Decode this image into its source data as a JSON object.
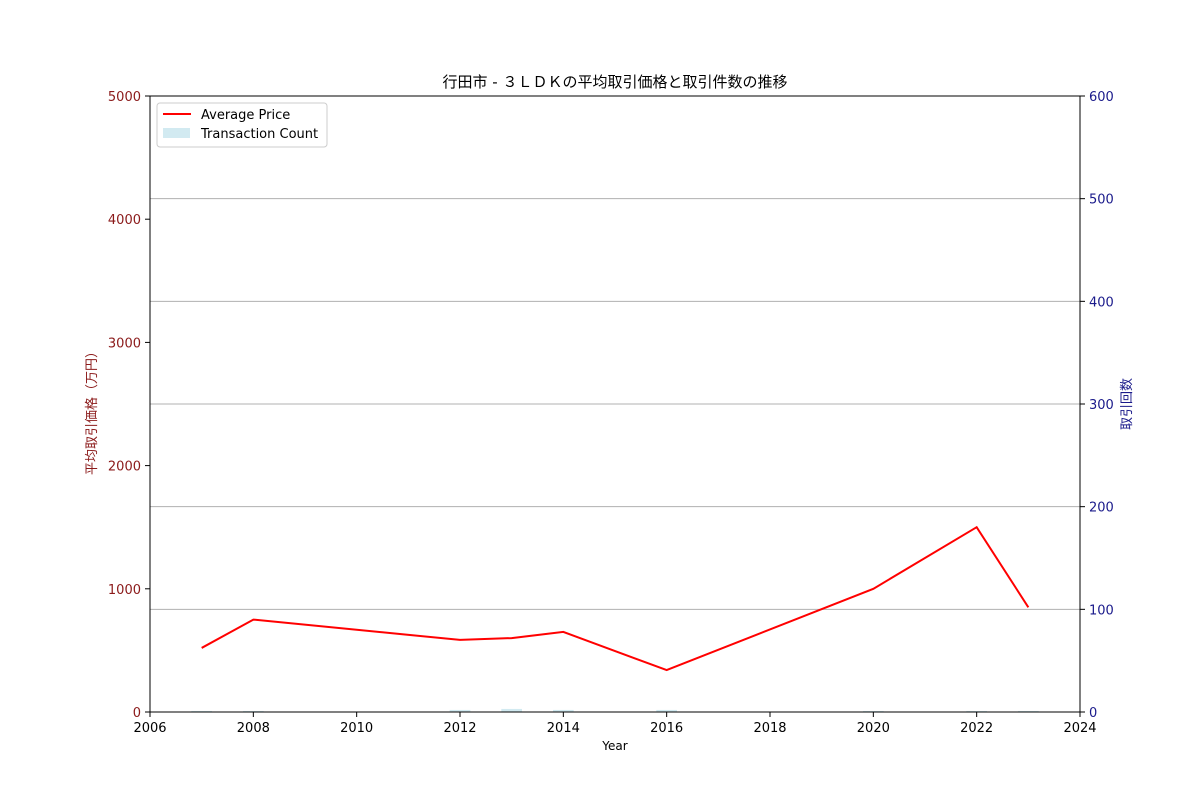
{
  "chart_data": {
    "type": "line",
    "title": "行田市 - ３ＬＤＫの平均取引価格と取引件数の推移",
    "xlabel": "Year",
    "ylabel_left": "平均取引価格（万円）",
    "ylabel_right": "取引回数",
    "xlim": [
      2006,
      2024
    ],
    "ylim_left": [
      0,
      5000
    ],
    "ylim_right": [
      0,
      600
    ],
    "x_ticks": [
      2006,
      2008,
      2010,
      2012,
      2014,
      2016,
      2018,
      2020,
      2022,
      2024
    ],
    "y_ticks_left": [
      0,
      1000,
      2000,
      3000,
      4000,
      5000
    ],
    "y_ticks_right": [
      0,
      100,
      200,
      300,
      400,
      500,
      600
    ],
    "grid": "horizontal (right axis)",
    "legend_position": "top-left",
    "colors": {
      "price_line": "#ff0000",
      "count_bar": "#add8e6",
      "left_axis": "#8b1a1a",
      "right_axis": "#1a1a8b",
      "grid": "#b0b0b0"
    },
    "series": [
      {
        "name": "Average Price",
        "axis": "left",
        "kind": "line",
        "x": [
          2007,
          2008,
          2012,
          2013,
          2014,
          2016,
          2020,
          2022,
          2023
        ],
        "values": [
          520,
          750,
          585,
          600,
          650,
          340,
          1000,
          1500,
          850
        ]
      },
      {
        "name": "Transaction Count",
        "axis": "right",
        "kind": "bar",
        "x": [
          2007,
          2008,
          2012,
          2013,
          2014,
          2016,
          2020,
          2022,
          2023
        ],
        "values": [
          1,
          1,
          2,
          3,
          2,
          2,
          1,
          1,
          1
        ]
      }
    ]
  }
}
